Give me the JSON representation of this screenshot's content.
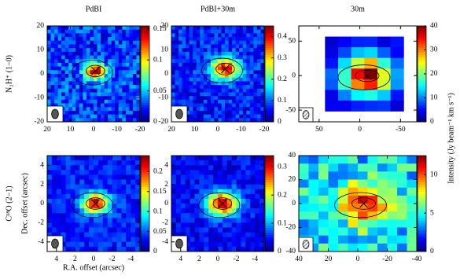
{
  "column_titles": [
    "PdBI",
    "PdBI+30m",
    "30m"
  ],
  "row_labels": [
    "N₂H⁺ (1−0)",
    "C¹⁸O (2−1)"
  ],
  "y_axis_label": "Dec. offset (arcsec)",
  "x_axis_label": "R.A. offset (arcsec)",
  "colorbar_label": "Intensity (Jy beam⁻¹ km s⁻¹)",
  "panels": [
    {
      "xlim": [
        20,
        -20
      ],
      "ylim": [
        -20,
        20
      ],
      "xticks": [
        20,
        10,
        0,
        -10,
        -20
      ],
      "yticks": [
        -20,
        -10,
        0,
        10,
        20
      ],
      "clim": [
        0,
        0.155
      ],
      "cticks": [
        0,
        0.05,
        0.1,
        0.15
      ]
    },
    {
      "xlim": [
        20,
        -20
      ],
      "ylim": [
        -20,
        20
      ],
      "xticks": [
        20,
        10,
        0,
        -10,
        -20
      ],
      "yticks": [
        -20,
        -10,
        0,
        10,
        20
      ],
      "clim": [
        0,
        0.45
      ],
      "cticks": [
        0,
        0.1,
        0.2,
        0.3,
        0.4
      ]
    },
    {
      "xlim": [
        75,
        -70
      ],
      "ylim": [
        -67,
        72
      ],
      "xticks": [
        50,
        0,
        -50
      ],
      "yticks": [
        -50,
        0,
        50
      ],
      "clim": [
        0,
        40
      ],
      "cticks": [
        0,
        10,
        20,
        30,
        40
      ]
    },
    {
      "xlim": [
        5,
        -5
      ],
      "ylim": [
        -5,
        5
      ],
      "xticks": [
        4,
        2,
        0,
        -2,
        -4
      ],
      "yticks": [
        -4,
        -2,
        0,
        2,
        4
      ],
      "clim": [
        0,
        0.24
      ],
      "cticks": [
        0,
        0.05,
        0.1,
        0.15,
        0.2
      ]
    },
    {
      "xlim": [
        5,
        -5
      ],
      "ylim": [
        -5,
        5
      ],
      "xticks": [
        4,
        2,
        0,
        -2,
        -4
      ],
      "yticks": [
        -4,
        -2,
        0,
        2,
        4
      ],
      "clim": [
        0,
        0.34
      ],
      "cticks": [
        0,
        0.1,
        0.2,
        0.3
      ]
    },
    {
      "xlim": [
        40,
        -40
      ],
      "ylim": [
        -40,
        40
      ],
      "xticks": [
        40,
        20,
        0,
        -20,
        -40
      ],
      "yticks": [
        -40,
        -20,
        0,
        20,
        40
      ],
      "clim": [
        0,
        12.5
      ],
      "cticks": [
        0,
        5,
        10
      ]
    }
  ]
}
